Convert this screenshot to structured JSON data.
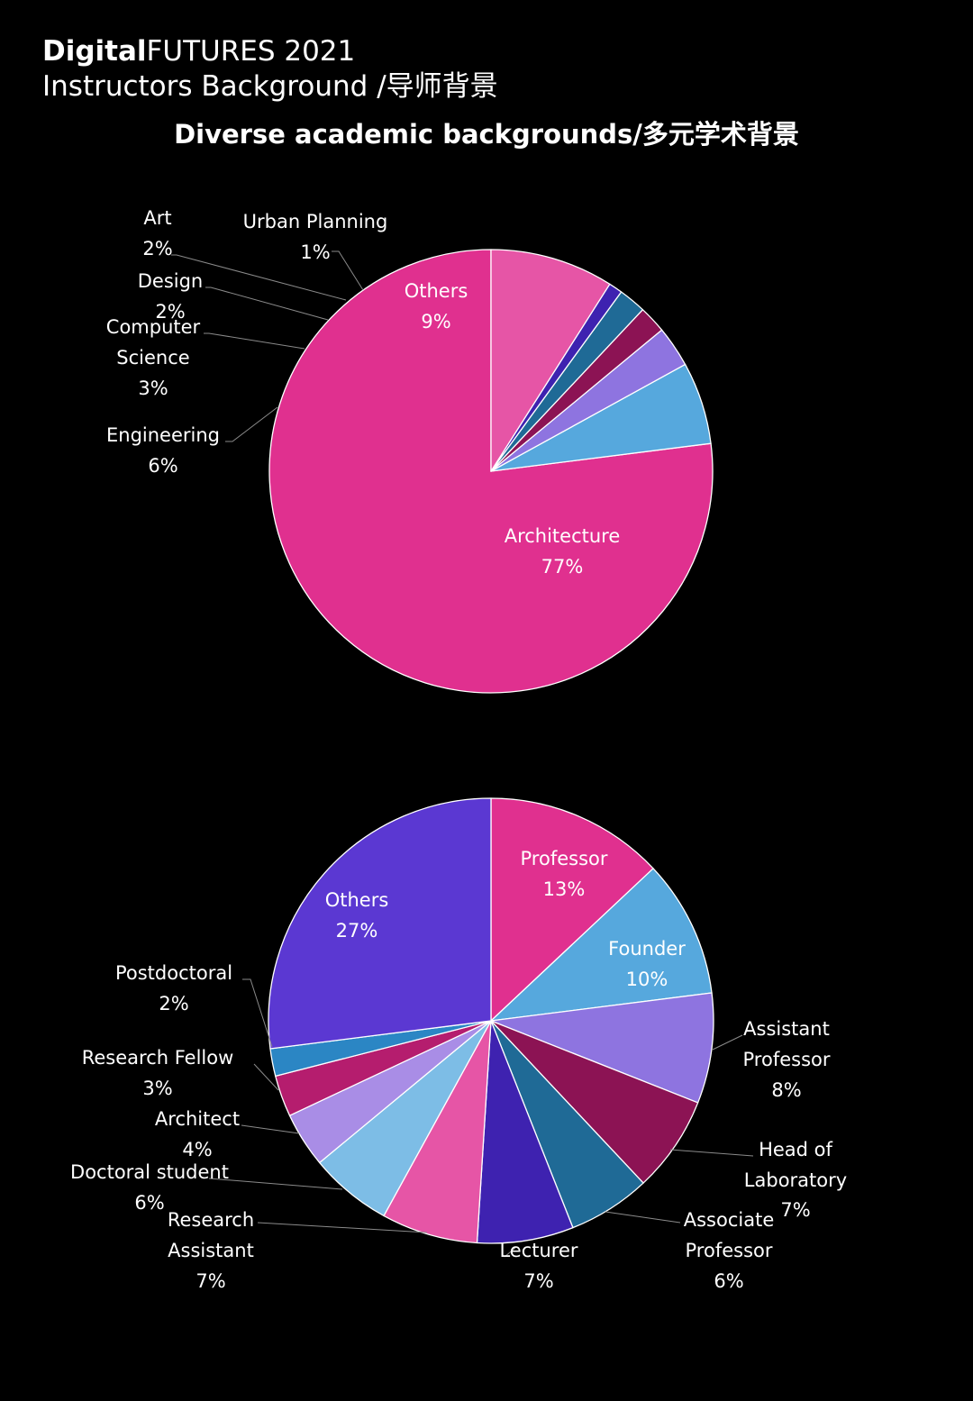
{
  "header": {
    "brand_bold": "Digital",
    "brand_rest": "FUTURES 2021",
    "subtitle": "Instructors Background /导师背景"
  },
  "chart_data": [
    {
      "type": "pie",
      "title": "Diverse academic backgrounds/多元学术背景",
      "slices": [
        {
          "label": "Architecture",
          "value": 77,
          "display": "77%",
          "color": "#e0308f"
        },
        {
          "label": "Engineering",
          "value": 6,
          "display": "6%",
          "color": "#56a8dd"
        },
        {
          "label": "Computer Science",
          "value": 3,
          "display": "3%",
          "color": "#8e74e0"
        },
        {
          "label": "Design",
          "value": 2,
          "display": "2%",
          "color": "#8c1354"
        },
        {
          "label": "Art",
          "value": 2,
          "display": "2%",
          "color": "#1f6a96"
        },
        {
          "label": "Urban Planning",
          "value": 1,
          "display": "1%",
          "color": "#3e22b0"
        },
        {
          "label": "Others",
          "value": 9,
          "display": "9%",
          "color": "#e655a6"
        }
      ]
    },
    {
      "type": "pie",
      "title": "",
      "slices": [
        {
          "label": "Professor",
          "value": 13,
          "display": "13%",
          "color": "#e0308f"
        },
        {
          "label": "Founder",
          "value": 10,
          "display": "10%",
          "color": "#56a8dd"
        },
        {
          "label": "Assistant Professor",
          "value": 8,
          "display": "8%",
          "color": "#8e74e0"
        },
        {
          "label": "Head of Laboratory",
          "value": 7,
          "display": "7%",
          "color": "#8c1354"
        },
        {
          "label": "Associate Professor",
          "value": 6,
          "display": "6%",
          "color": "#1f6a96"
        },
        {
          "label": "Lecturer",
          "value": 7,
          "display": "7%",
          "color": "#3e22b0"
        },
        {
          "label": "Research Assistant",
          "value": 7,
          "display": "7%",
          "color": "#e655a6"
        },
        {
          "label": "Doctoral student",
          "value": 6,
          "display": "6%",
          "color": "#7dbde6"
        },
        {
          "label": "Architect",
          "value": 4,
          "display": "4%",
          "color": "#a98de6"
        },
        {
          "label": "Research Fellow",
          "value": 3,
          "display": "3%",
          "color": "#b51d6e"
        },
        {
          "label": "Postdoctoral",
          "value": 2,
          "display": "2%",
          "color": "#2b86c4"
        },
        {
          "label": "Others",
          "value": 27,
          "display": "27%",
          "color": "#5b38d2"
        }
      ]
    }
  ]
}
